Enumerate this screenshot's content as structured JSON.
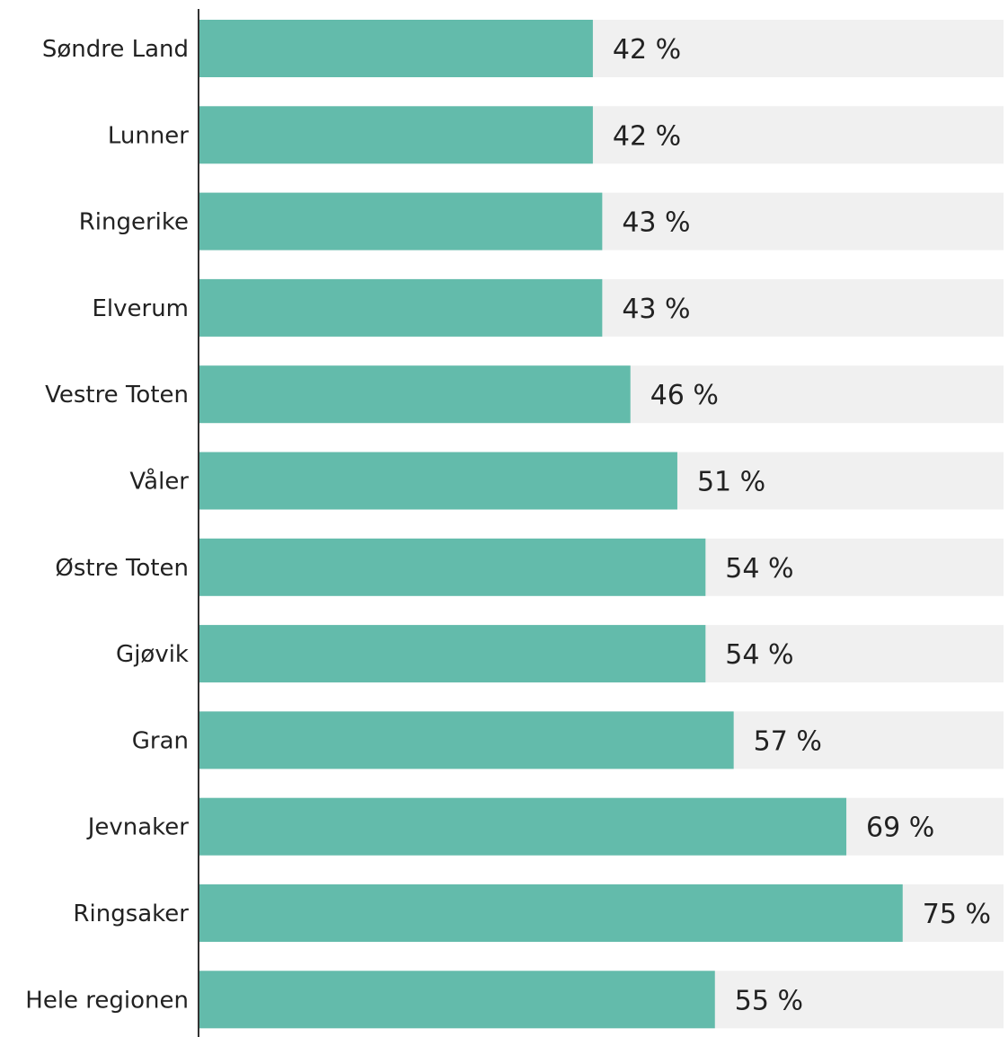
{
  "chart_data": {
    "type": "bar",
    "orientation": "horizontal",
    "categories": [
      "Søndre Land",
      "Lunner",
      "Ringerike",
      "Elverum",
      "Vestre Toten",
      "Våler",
      "Østre Toten",
      "Gjøvik",
      "Gran",
      "Jevnaker",
      "Ringsaker",
      "Hele regionen"
    ],
    "values": [
      42,
      42,
      43,
      43,
      46,
      51,
      54,
      54,
      57,
      69,
      75,
      55
    ],
    "value_labels": [
      "42 %",
      "42 %",
      "43 %",
      "43 %",
      "46 %",
      "51 %",
      "54 %",
      "54 %",
      "57 %",
      "69 %",
      "75 %",
      "55 %"
    ],
    "xlim": [
      0,
      100
    ],
    "grid": false,
    "legend": "none",
    "colors": {
      "bar": "#63bbab",
      "track": "#f0f0f0",
      "axis": "#333333",
      "text": "#222222"
    }
  }
}
